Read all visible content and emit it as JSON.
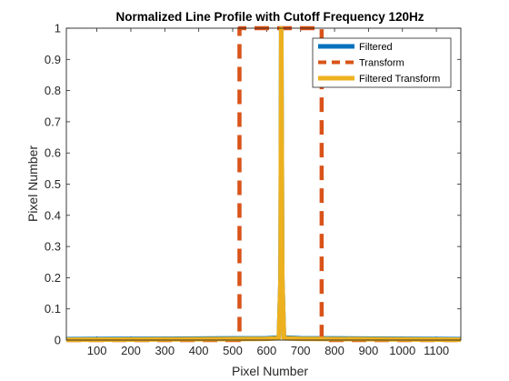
{
  "chart_data": {
    "type": "line",
    "title": "Normalized Line Profile with Cutoff Frequency 120Hz",
    "xlabel": "Pixel Number",
    "ylabel": "Pixel Number",
    "xlim": [
      10,
      1172
    ],
    "ylim": [
      0,
      1
    ],
    "x_ticks": [
      100,
      200,
      300,
      400,
      500,
      600,
      700,
      800,
      900,
      1000,
      1100
    ],
    "y_ticks": [
      0,
      0.1,
      0.2,
      0.3,
      0.4,
      0.5,
      0.6,
      0.7,
      0.8,
      0.9,
      1
    ],
    "grid": false,
    "legend_position": "top-right",
    "series": [
      {
        "name": "Filtered",
        "color": "#0072BD",
        "style": "solid",
        "x": [
          10,
          300,
          600,
          636,
          641,
          643,
          646,
          651,
          700,
          1000,
          1172
        ],
        "y": [
          0.003,
          0.004,
          0.006,
          0.008,
          0.2,
          1.0,
          0.2,
          0.008,
          0.006,
          0.004,
          0.003
        ]
      },
      {
        "name": "Transform",
        "color": "#D95319",
        "style": "dashed",
        "x": [
          10,
          520,
          520,
          522,
          522,
          643,
          760,
          762,
          762,
          1172
        ],
        "y": [
          0,
          0,
          1,
          1,
          1,
          1,
          1,
          1,
          0,
          0
        ]
      },
      {
        "name": "Filtered Transform",
        "color": "#EDB120",
        "style": "solid",
        "x": [
          10,
          300,
          600,
          636,
          641,
          643,
          646,
          651,
          700,
          1000,
          1172
        ],
        "y": [
          0.001,
          0.002,
          0.004,
          0.006,
          0.2,
          1.0,
          0.2,
          0.006,
          0.004,
          0.002,
          0.001
        ]
      }
    ]
  }
}
